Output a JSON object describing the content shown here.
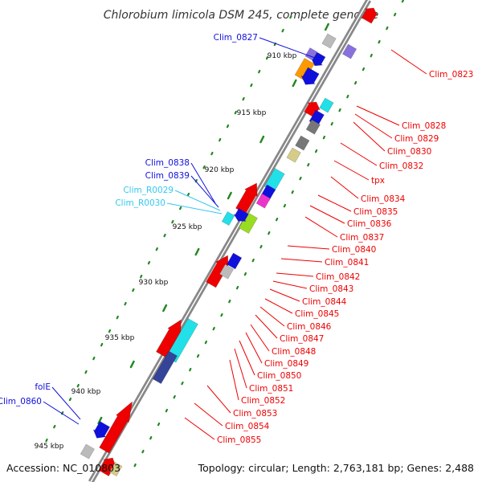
{
  "title": "Chlorobium limicola DSM 245, complete genome",
  "footer": {
    "accession": "Accession: NC_010803",
    "summary": "Topology: circular; Length: 2,763,181 bp; Genes: 2,488"
  },
  "colors": {
    "red": "#ee0000",
    "blue": "#1010dd",
    "cyan": "#22e0e8",
    "light_blue": "#33c8f0",
    "gray": "#bbbbbb",
    "orange": "#ff9900",
    "purple": "#8870dd",
    "magenta": "#ee33cc",
    "yellowgreen": "#99dd22",
    "tan": "#d4cc88",
    "dark_gray": "#777777",
    "navy": "#334499",
    "backbone": "#888888",
    "tick": "#228822"
  },
  "kbp_labels": [
    "910 kbp",
    "915 kbp",
    "920 kbp",
    "925 kbp",
    "930 kbp",
    "935 kbp",
    "940 kbp",
    "945 kbp"
  ],
  "labels_left": [
    {
      "text": "Clim_0827",
      "color": "blue"
    },
    {
      "text": "Clim_0838",
      "color": "blue"
    },
    {
      "text": "Clim_0839",
      "color": "blue"
    },
    {
      "text": "Clim_R0029",
      "color": "light_blue"
    },
    {
      "text": "Clim_R0030",
      "color": "light_blue"
    },
    {
      "text": "folE",
      "color": "blue"
    },
    {
      "text": "Clim_0860",
      "color": "blue"
    }
  ],
  "labels_right": [
    {
      "text": "Clim_0823"
    },
    {
      "text": "Clim_0828"
    },
    {
      "text": "Clim_0829"
    },
    {
      "text": "Clim_0830"
    },
    {
      "text": "Clim_0832"
    },
    {
      "text": "tpx"
    },
    {
      "text": "Clim_0834"
    },
    {
      "text": "Clim_0835"
    },
    {
      "text": "Clim_0836"
    },
    {
      "text": "Clim_0837"
    },
    {
      "text": "Clim_0840"
    },
    {
      "text": "Clim_0841"
    },
    {
      "text": "Clim_0842"
    },
    {
      "text": "Clim_0843"
    },
    {
      "text": "Clim_0844"
    },
    {
      "text": "Clim_0845"
    },
    {
      "text": "Clim_0846"
    },
    {
      "text": "Clim_0847"
    },
    {
      "text": "Clim_0848"
    },
    {
      "text": "Clim_0849"
    },
    {
      "text": "Clim_0850"
    },
    {
      "text": "Clim_0851"
    },
    {
      "text": "Clim_0852"
    },
    {
      "text": "Clim_0853"
    },
    {
      "text": "Clim_0854"
    },
    {
      "text": "Clim_0855"
    }
  ],
  "features": [
    {
      "strand": "outer",
      "color": "red",
      "arrow": true
    },
    {
      "strand": "outer",
      "color": "purple",
      "arrow": false
    },
    {
      "strand": "inner",
      "color": "gray",
      "arrow": false
    },
    {
      "strand": "inner",
      "color": "blue",
      "arrow": true
    },
    {
      "strand": "inner",
      "color": "purple",
      "arrow": false
    },
    {
      "strand": "inner",
      "color": "orange",
      "arrow": false
    },
    {
      "strand": "inner",
      "color": "blue",
      "arrow": true
    },
    {
      "strand": "outer",
      "color": "red",
      "arrow": true
    },
    {
      "strand": "outer",
      "color": "cyan",
      "arrow": false
    },
    {
      "strand": "outer",
      "color": "blue",
      "arrow": false
    },
    {
      "strand": "outer",
      "color": "dark_gray",
      "arrow": false
    },
    {
      "strand": "outer",
      "color": "dark_gray",
      "arrow": false
    },
    {
      "strand": "outer",
      "color": "tan",
      "arrow": false
    },
    {
      "strand": "outer",
      "color": "cyan",
      "arrow": false
    },
    {
      "strand": "outer",
      "color": "red",
      "arrow": true
    },
    {
      "strand": "outer",
      "color": "blue",
      "arrow": false
    },
    {
      "strand": "outer",
      "color": "magenta",
      "arrow": false
    },
    {
      "strand": "outer",
      "color": "yellowgreen",
      "arrow": false
    },
    {
      "strand": "inner",
      "color": "cyan",
      "arrow": false
    },
    {
      "strand": "inner",
      "color": "blue",
      "arrow": true
    },
    {
      "strand": "outer",
      "color": "red",
      "arrow": true
    },
    {
      "strand": "outer",
      "color": "blue",
      "arrow": false
    },
    {
      "strand": "outer",
      "color": "gray",
      "arrow": false
    },
    {
      "strand": "outer",
      "color": "red",
      "arrow": true
    },
    {
      "strand": "outer",
      "color": "cyan",
      "arrow": false
    },
    {
      "strand": "outer",
      "color": "navy",
      "arrow": false
    },
    {
      "strand": "outer",
      "color": "red",
      "arrow": true
    },
    {
      "strand": "inner",
      "color": "blue",
      "arrow": true
    },
    {
      "strand": "inner",
      "color": "gray",
      "arrow": false
    },
    {
      "strand": "outer",
      "color": "red",
      "arrow": true
    },
    {
      "strand": "outer",
      "color": "tan",
      "arrow": false
    }
  ]
}
